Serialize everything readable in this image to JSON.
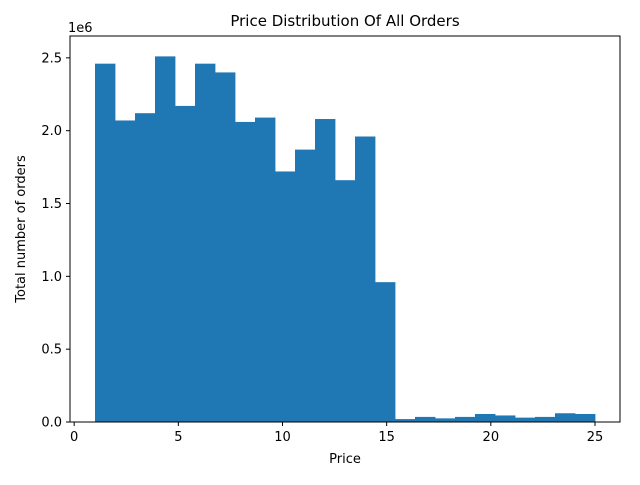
{
  "chart_data": {
    "type": "bar",
    "title": "Price Distribution Of All Orders",
    "xlabel": "Price",
    "ylabel": "Total number of orders",
    "y_offset_label": "1e6",
    "xlim": [
      -0.2,
      26.2
    ],
    "ylim": [
      0,
      2.65
    ],
    "x_ticks": [
      0,
      5,
      10,
      15,
      20,
      25
    ],
    "x_tick_labels": [
      "0",
      "5",
      "10",
      "15",
      "20",
      "25"
    ],
    "y_ticks": [
      0,
      0.5,
      1.0,
      1.5,
      2.0,
      2.5
    ],
    "y_tick_labels": [
      "0.0",
      "0.5",
      "1.0",
      "1.5",
      "2.0",
      "2.5"
    ],
    "grid": false,
    "bar_color": "#1f77b4",
    "bin_edges": [
      1.0,
      1.96,
      2.92,
      3.88,
      4.84,
      5.8,
      6.76,
      7.72,
      8.68,
      9.64,
      10.6,
      11.56,
      12.52,
      13.48,
      14.44,
      15.4,
      16.36,
      17.32,
      18.28,
      19.24,
      20.2,
      21.16,
      22.12,
      23.08,
      24.04,
      25.0
    ],
    "values_unit": "millions",
    "values": [
      2.46,
      2.07,
      2.12,
      2.51,
      2.17,
      2.46,
      2.4,
      2.06,
      2.09,
      1.72,
      1.87,
      2.08,
      1.66,
      1.96,
      0.96,
      0.02,
      0.035,
      0.025,
      0.035,
      0.055,
      0.045,
      0.03,
      0.035,
      0.06,
      0.055
    ]
  }
}
